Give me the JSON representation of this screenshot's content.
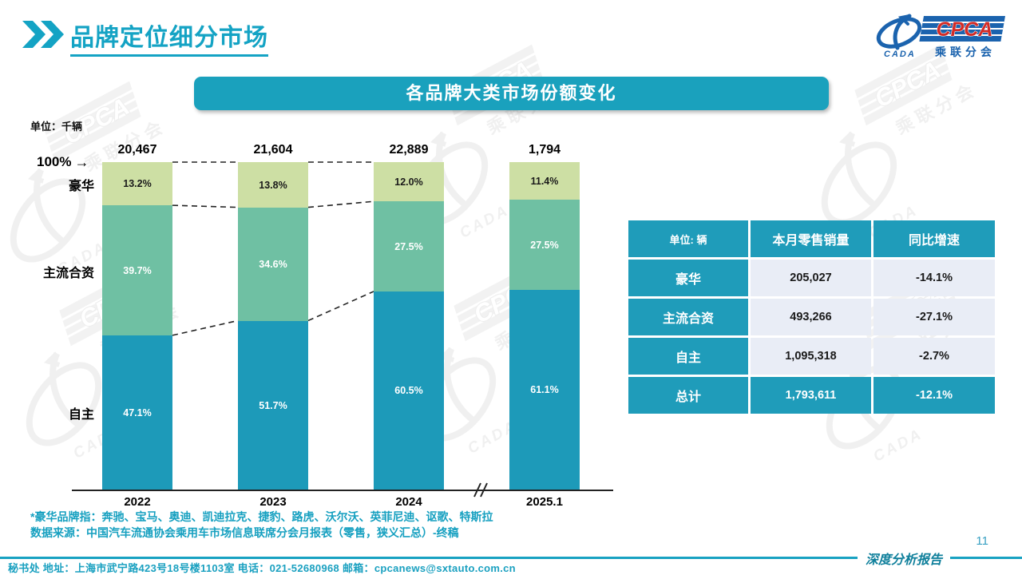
{
  "page": {
    "title": "品牌定位细分市场",
    "page_number": "11"
  },
  "logo": {
    "cpca": "CPCA",
    "cada": "CADA",
    "subtitle": "乘联分会"
  },
  "banner": {
    "title": "各品牌大类市场份额变化"
  },
  "chart_data": {
    "type": "bar",
    "subtype": "stacked-100-percent",
    "unit_label": "单位：千辆",
    "axis_start_label": "100%",
    "categories": [
      "2022",
      "2023",
      "2024",
      "2025.1"
    ],
    "totals": [
      "20,467",
      "21,604",
      "22,889",
      "1,794"
    ],
    "series": [
      {
        "name": "豪华",
        "values": [
          13.2,
          13.8,
          12.0,
          11.4
        ],
        "labels": [
          "13.2%",
          "13.8%",
          "12.0%",
          "11.4%"
        ],
        "color": "#cddfa4",
        "label_color": "#1a1a1a"
      },
      {
        "name": "主流合资",
        "values": [
          39.7,
          34.6,
          27.5,
          27.5
        ],
        "labels": [
          "39.7%",
          "34.6%",
          "27.5%",
          "27.5%"
        ],
        "color": "#6fc0a3",
        "label_color": "#ffffff"
      },
      {
        "name": "自主",
        "values": [
          47.1,
          51.7,
          60.5,
          61.1
        ],
        "labels": [
          "47.1%",
          "51.7%",
          "60.5%",
          "61.1%"
        ],
        "color": "#1d9ab9",
        "label_color": "#ffffff"
      }
    ],
    "connected_bars": 3,
    "axis_break_after_category": "2024",
    "ylim": [
      0,
      100
    ],
    "legend_position": "left-category-labels",
    "grid": false
  },
  "table": {
    "header": [
      "单位: 辆",
      "本月零售销量",
      "同比增速"
    ],
    "rows": [
      {
        "label": "豪华",
        "sales": "205,027",
        "yoy": "-14.1%"
      },
      {
        "label": "主流合资",
        "sales": "493,266",
        "yoy": "-27.1%"
      },
      {
        "label": "自主",
        "sales": "1,095,318",
        "yoy": "-2.7%"
      }
    ],
    "total_row": {
      "label": "总计",
      "sales": "1,793,611",
      "yoy": "-12.1%"
    }
  },
  "footnotes": [
    "*豪华品牌指：奔驰、宝马、奥迪、凯迪拉克、捷豹、路虎、沃尔沃、英菲尼迪、讴歌、特斯拉",
    "数据来源：中国汽车流通协会乘用车市场信息联席分会月报表（零售，狭义汇总）-终稿"
  ],
  "footer": {
    "contact": "秘书处  地址：上海市武宁路423号18号楼1103室 电话：021-52680968   邮箱：cpcanews@sxtauto.com.cn",
    "report_label": "深度分析报告"
  },
  "colors": {
    "teal_primary": "#1aa1bd",
    "teal_bar": "#1d9ab9",
    "green_mid": "#6fc0a3",
    "green_light": "#cddfa4",
    "title_text": "#14a3c4",
    "footnote_text": "#16a0c0",
    "table_cell_bg": "#e9edf6",
    "report_label_text": "#0e7f9b"
  }
}
